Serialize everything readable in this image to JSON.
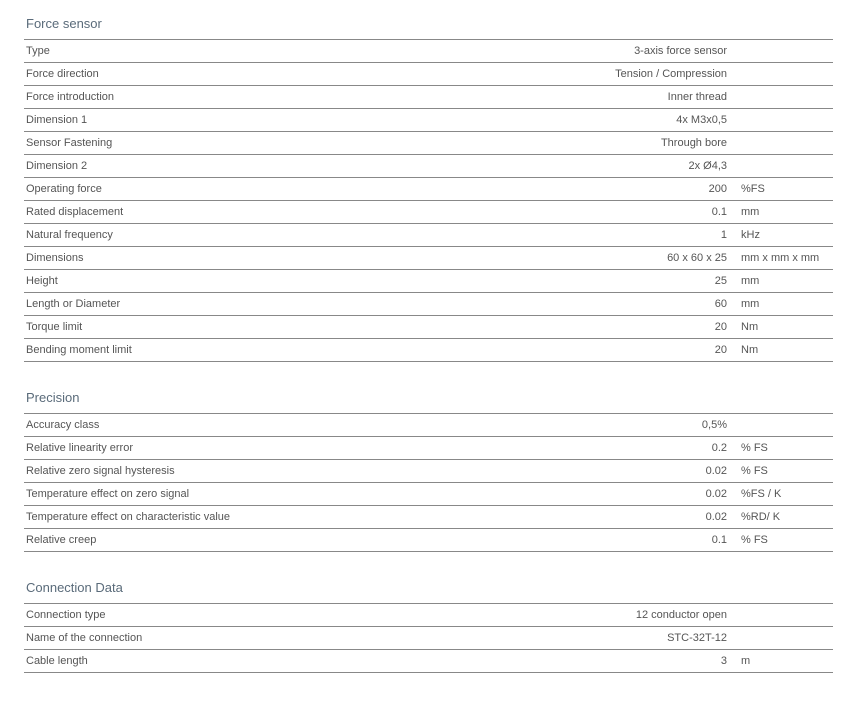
{
  "sections": [
    {
      "title": "Force sensor",
      "rows": [
        {
          "label": "Type",
          "value": "3-axis force sensor",
          "unit": ""
        },
        {
          "label": "Force direction",
          "value": "Tension / Compression",
          "unit": ""
        },
        {
          "label": "Force introduction",
          "value": "Inner thread",
          "unit": ""
        },
        {
          "label": "Dimension 1",
          "value": "4x M3x0,5",
          "unit": ""
        },
        {
          "label": "Sensor Fastening",
          "value": "Through bore",
          "unit": ""
        },
        {
          "label": "Dimension 2",
          "value": "2x Ø4,3",
          "unit": ""
        },
        {
          "label": "Operating force",
          "value": "200",
          "unit": "%FS"
        },
        {
          "label": "Rated displacement",
          "value": "0.1",
          "unit": "mm"
        },
        {
          "label": "Natural frequency",
          "value": "1",
          "unit": "kHz"
        },
        {
          "label": "Dimensions",
          "value": "60 x 60 x 25",
          "unit": "mm x mm x mm"
        },
        {
          "label": "Height",
          "value": "25",
          "unit": "mm"
        },
        {
          "label": "Length or Diameter",
          "value": "60",
          "unit": "mm"
        },
        {
          "label": "Torque limit",
          "value": "20",
          "unit": "Nm"
        },
        {
          "label": "Bending moment limit",
          "value": "20",
          "unit": "Nm"
        }
      ]
    },
    {
      "title": "Precision",
      "rows": [
        {
          "label": "Accuracy class",
          "value": "0,5%",
          "unit": ""
        },
        {
          "label": "Relative linearity error",
          "value": "0.2",
          "unit": "% FS"
        },
        {
          "label": "Relative zero signal hysteresis",
          "value": "0.02",
          "unit": "% FS"
        },
        {
          "label": "Temperature effect on zero signal",
          "value": "0.02",
          "unit": "%FS / K"
        },
        {
          "label": "Temperature effect on characteristic value",
          "value": "0.02",
          "unit": "%RD/ K"
        },
        {
          "label": "Relative creep",
          "value": "0.1",
          "unit": "% FS"
        }
      ]
    },
    {
      "title": "Connection Data",
      "rows": [
        {
          "label": "Connection type",
          "value": "12 conductor open",
          "unit": ""
        },
        {
          "label": "Name of the connection",
          "value": "STC-32T-12",
          "unit": ""
        },
        {
          "label": "Cable length",
          "value": "3",
          "unit": "m"
        }
      ]
    }
  ],
  "style": {
    "border_color": "#888888",
    "text_color": "#555555",
    "title_color": "#5a6b7a",
    "font_size": 11,
    "title_font_size": 13,
    "label_col_width": 300,
    "unit_col_width": 90
  }
}
